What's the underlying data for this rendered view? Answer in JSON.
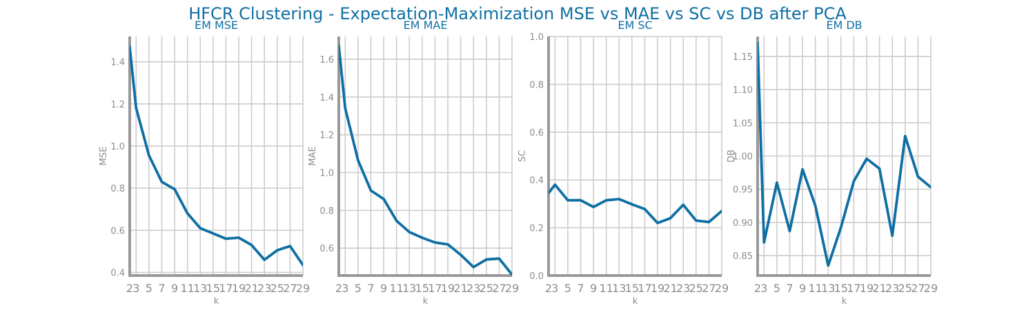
{
  "title": "HFCR Clustering - Expectation-Maximization MSE vs MAE vs SC vs DB after PCA",
  "colors": {
    "line": "#0f6fa3",
    "title": "#0f6fa3",
    "grid": "#cccccc",
    "axis": "#999999",
    "tick_text": "#8c8c8c"
  },
  "chart_data": [
    {
      "type": "line",
      "title": "EM MSE",
      "xlabel": "k",
      "ylabel": "MSE",
      "xlim": [
        2,
        29
      ],
      "ylim": [
        0.385,
        1.52
      ],
      "grid": true,
      "x": [
        2,
        3,
        5,
        7,
        9,
        11,
        13,
        15,
        17,
        19,
        21,
        23,
        25,
        27,
        29
      ],
      "values": [
        1.47,
        1.18,
        0.955,
        0.83,
        0.795,
        0.68,
        0.61,
        0.585,
        0.56,
        0.565,
        0.53,
        0.46,
        0.505,
        0.525,
        0.435
      ],
      "xticks": [
        2,
        3,
        5,
        7,
        9,
        11,
        13,
        15,
        17,
        19,
        21,
        23,
        25,
        27,
        29
      ],
      "yticks": [
        0.4,
        0.6,
        0.8,
        1.0,
        1.2,
        1.4
      ],
      "yticklabels": [
        "0.4",
        "0.6",
        "0.8",
        "1.0",
        "1.2",
        "1.4"
      ]
    },
    {
      "type": "line",
      "title": "EM MAE",
      "xlabel": "k",
      "ylabel": "MAE",
      "xlim": [
        2,
        29
      ],
      "ylim": [
        0.455,
        1.72
      ],
      "grid": true,
      "x": [
        2,
        3,
        5,
        7,
        9,
        11,
        13,
        15,
        17,
        19,
        21,
        23,
        25,
        27,
        29
      ],
      "values": [
        1.67,
        1.34,
        1.065,
        0.905,
        0.86,
        0.745,
        0.685,
        0.655,
        0.63,
        0.62,
        0.565,
        0.5,
        0.54,
        0.545,
        0.46
      ],
      "xticks": [
        2,
        3,
        5,
        7,
        9,
        11,
        13,
        15,
        17,
        19,
        21,
        23,
        25,
        27,
        29
      ],
      "yticks": [
        0.6,
        0.8,
        1.0,
        1.2,
        1.4,
        1.6
      ],
      "yticklabels": [
        "0.6",
        "0.8",
        "1.0",
        "1.2",
        "1.4",
        "1.6"
      ]
    },
    {
      "type": "line",
      "title": "EM SC",
      "xlabel": "k",
      "ylabel": "SC",
      "xlim": [
        2,
        29
      ],
      "ylim": [
        0.0,
        1.0
      ],
      "grid": true,
      "x": [
        2,
        3,
        5,
        7,
        9,
        11,
        13,
        15,
        17,
        19,
        21,
        23,
        25,
        27,
        29
      ],
      "values": [
        0.345,
        0.38,
        0.315,
        0.315,
        0.287,
        0.315,
        0.32,
        0.298,
        0.278,
        0.22,
        0.24,
        0.296,
        0.23,
        0.224,
        0.27
      ],
      "xticks": [
        2,
        3,
        5,
        7,
        9,
        11,
        13,
        15,
        17,
        19,
        21,
        23,
        25,
        27,
        29
      ],
      "yticks": [
        0.0,
        0.2,
        0.4,
        0.6,
        0.8,
        1.0
      ],
      "yticklabels": [
        "0.0",
        "0.2",
        "0.4",
        "0.6",
        "0.8",
        "1.0"
      ]
    },
    {
      "type": "line",
      "title": "EM DB",
      "xlabel": "k",
      "ylabel": "DB",
      "xlim": [
        2,
        29
      ],
      "ylim": [
        0.82,
        1.18
      ],
      "grid": true,
      "x": [
        2,
        3,
        5,
        7,
        9,
        11,
        13,
        15,
        17,
        19,
        21,
        23,
        25,
        27,
        29
      ],
      "values": [
        1.17,
        0.87,
        0.96,
        0.887,
        0.98,
        0.925,
        0.835,
        0.893,
        0.962,
        0.996,
        0.981,
        0.88,
        1.03,
        0.969,
        0.953
      ],
      "xticks": [
        2,
        3,
        5,
        7,
        9,
        11,
        13,
        15,
        17,
        19,
        21,
        23,
        25,
        27,
        29
      ],
      "yticks": [
        0.85,
        0.9,
        0.95,
        1.0,
        1.05,
        1.1,
        1.15
      ],
      "yticklabels": [
        "0.85",
        "0.90",
        "0.95",
        "1.00",
        "1.05",
        "1.10",
        "1.15"
      ]
    }
  ]
}
